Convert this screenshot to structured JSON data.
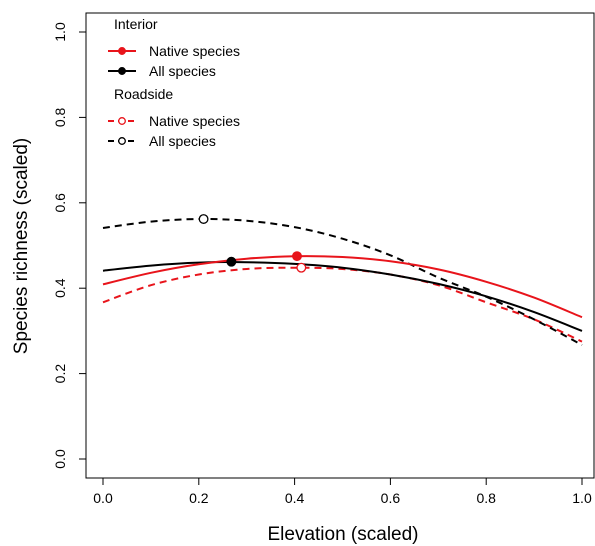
{
  "chart_data": {
    "type": "line",
    "xlabel": "Elevation (scaled)",
    "ylabel": "Species richness (scaled)",
    "xlim": [
      0,
      1
    ],
    "ylim": [
      0,
      1
    ],
    "x_ticks": [
      "0.0",
      "0.2",
      "0.4",
      "0.6",
      "0.8",
      "1.0"
    ],
    "y_ticks": [
      "0.0",
      "0.2",
      "0.4",
      "0.6",
      "0.8",
      "1.0"
    ],
    "grid": false,
    "legend_position": "top-left",
    "legend_groups": [
      {
        "title": "Interior",
        "entries": [
          "Native species",
          "All species"
        ]
      },
      {
        "title": "Roadside",
        "entries": [
          "Native species",
          "All species"
        ]
      }
    ],
    "series": [
      {
        "name": "Native species",
        "group": "Interior",
        "color": "#e8141b",
        "line": "solid",
        "marker": "filled",
        "x": [
          0.0,
          0.1,
          0.2,
          0.3,
          0.4,
          0.5,
          0.6,
          0.7,
          0.8,
          0.9,
          1.0
        ],
        "y": [
          0.409,
          0.436,
          0.456,
          0.469,
          0.475,
          0.473,
          0.463,
          0.444,
          0.415,
          0.378,
          0.332
        ],
        "peak": {
          "x": 0.405,
          "y": 0.475
        }
      },
      {
        "name": "All species",
        "group": "Interior",
        "color": "#000000",
        "line": "solid",
        "marker": "filled",
        "x": [
          0.0,
          0.1,
          0.2,
          0.3,
          0.4,
          0.5,
          0.6,
          0.7,
          0.8,
          0.9,
          1.0
        ],
        "y": [
          0.441,
          0.453,
          0.46,
          0.461,
          0.457,
          0.448,
          0.432,
          0.41,
          0.381,
          0.344,
          0.3
        ],
        "peak": {
          "x": 0.268,
          "y": 0.462
        }
      },
      {
        "name": "Native species",
        "group": "Roadside",
        "color": "#e8141b",
        "line": "dashed",
        "marker": "open",
        "x": [
          0.0,
          0.1,
          0.2,
          0.3,
          0.4,
          0.5,
          0.6,
          0.7,
          0.8,
          0.9,
          1.0
        ],
        "y": [
          0.367,
          0.407,
          0.432,
          0.445,
          0.448,
          0.445,
          0.432,
          0.407,
          0.367,
          0.327,
          0.275
        ],
        "peak": {
          "x": 0.414,
          "y": 0.448
        }
      },
      {
        "name": "All species",
        "group": "Roadside",
        "color": "#000000",
        "line": "dashed",
        "marker": "open",
        "x": [
          0.0,
          0.1,
          0.2,
          0.3,
          0.4,
          0.5,
          0.6,
          0.7,
          0.8,
          0.9,
          1.0
        ],
        "y": [
          0.541,
          0.556,
          0.562,
          0.558,
          0.543,
          0.516,
          0.477,
          0.425,
          0.38,
          0.327,
          0.267
        ],
        "peak": {
          "x": 0.21,
          "y": 0.562
        }
      }
    ]
  }
}
